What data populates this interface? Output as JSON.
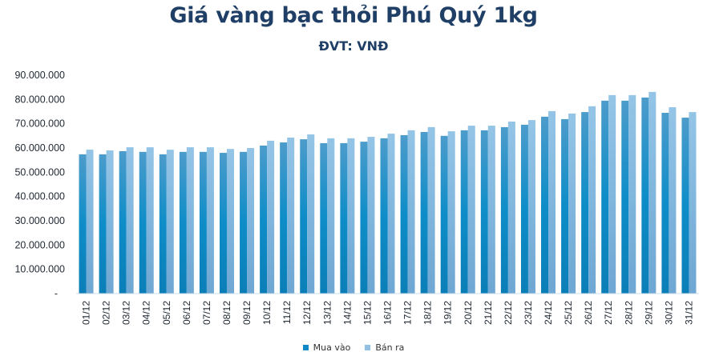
{
  "header": {
    "title": "Giá vàng bạc thỏi Phú Quý 1kg",
    "subtitle": "ĐVT: VNĐ"
  },
  "legend": {
    "items": [
      {
        "label": "Mua vào",
        "color": "#1089C6"
      },
      {
        "label": "Bán ra",
        "color": "#8FC0E4"
      }
    ]
  },
  "chart_data": {
    "type": "bar",
    "title": "Giá vàng bạc thỏi Phú Quý 1kg",
    "subtitle": "ĐVT: VNĐ",
    "xlabel": "",
    "ylabel": "",
    "ylim": [
      0,
      90000000
    ],
    "yticks": [
      0,
      10000000,
      20000000,
      30000000,
      40000000,
      50000000,
      60000000,
      70000000,
      80000000,
      90000000
    ],
    "ytick_labels": [
      "-",
      "10.000.000",
      "20.000.000",
      "30.000.000",
      "40.000.000",
      "50.000.000",
      "60.000.000",
      "70.000.000",
      "80.000.000",
      "90.000.000"
    ],
    "grid": false,
    "legend_position": "bottom",
    "categories": [
      "01/12",
      "02/12",
      "03/12",
      "04/12",
      "05/12",
      "06/12",
      "07/12",
      "08/12",
      "09/12",
      "10/12",
      "11/12",
      "12/12",
      "13/12",
      "14/12",
      "15/12",
      "16/12",
      "17/12",
      "18/12",
      "19/12",
      "20/12",
      "21/12",
      "22/12",
      "23/12",
      "24/12",
      "25/12",
      "26/12",
      "27/12",
      "28/12",
      "29/12",
      "30/12",
      "31/12"
    ],
    "series": [
      {
        "name": "Mua vào",
        "color": "#1089C6",
        "values": [
          57400000,
          57400000,
          58700000,
          58400000,
          57400000,
          58400000,
          58400000,
          58000000,
          58400000,
          61000000,
          62300000,
          63600000,
          62000000,
          62000000,
          62600000,
          64000000,
          65300000,
          66600000,
          65000000,
          67300000,
          67300000,
          68600000,
          69600000,
          72900000,
          71900000,
          74800000,
          79500000,
          79500000,
          80800000,
          74500000,
          72500000
        ]
      },
      {
        "name": "Bán ra",
        "color": "#8FC0E4",
        "values": [
          59300000,
          59000000,
          60300000,
          60300000,
          59300000,
          60300000,
          60300000,
          59600000,
          60000000,
          63000000,
          64300000,
          65600000,
          64000000,
          64000000,
          64600000,
          65900000,
          67300000,
          68600000,
          66900000,
          69200000,
          69200000,
          70900000,
          71500000,
          75200000,
          74200000,
          77200000,
          81800000,
          81800000,
          83100000,
          76800000,
          74800000
        ]
      }
    ]
  }
}
